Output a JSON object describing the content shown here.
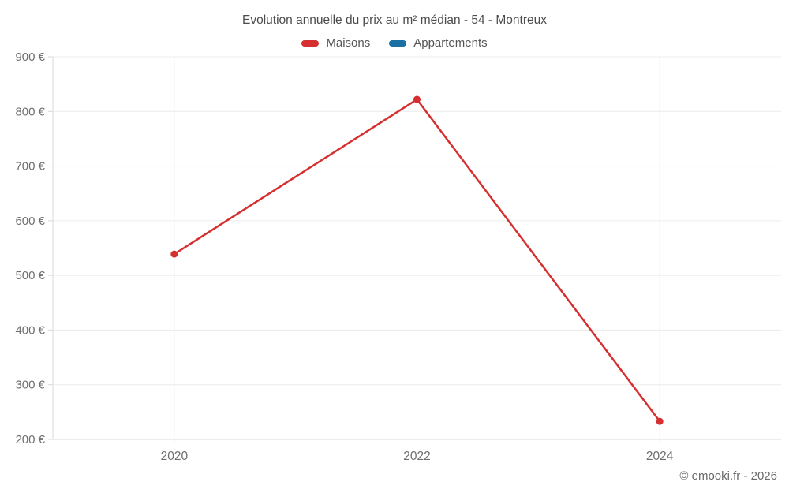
{
  "header": {
    "title": "Evolution annuelle du prix au m² médian - 54 - Montreux"
  },
  "legend": [
    {
      "label": "Maisons",
      "color": "#d62f2f"
    },
    {
      "label": "Appartements",
      "color": "#1a6fa3"
    }
  ],
  "footer": {
    "credit": "© emooki.fr - 2026"
  },
  "colors": {
    "grid": "#ececec",
    "axis": "#d9d9d9",
    "tick_text": "#6e6e6e",
    "title_text": "#4c4c4c",
    "maisons": "#d62f2f",
    "appartements": "#1a6fa3"
  },
  "chart_data": {
    "type": "line",
    "title": "Evolution annuelle du prix au m² médian - 54 - Montreux",
    "xlabel": "",
    "ylabel": "",
    "x": [
      2020,
      2022,
      2024
    ],
    "series": [
      {
        "name": "Maisons",
        "color": "#d62f2f",
        "values": [
          539,
          822,
          233
        ]
      },
      {
        "name": "Appartements",
        "color": "#1a6fa3",
        "values": []
      }
    ],
    "xlim": [
      2019,
      2025
    ],
    "ylim": [
      200,
      900
    ],
    "yticks": [
      200,
      300,
      400,
      500,
      600,
      700,
      800,
      900
    ],
    "ytick_labels": [
      "200 €",
      "300 €",
      "400 €",
      "500 €",
      "600 €",
      "700 €",
      "800 €",
      "900 €"
    ],
    "xticks": [
      2020,
      2022,
      2024
    ],
    "xtick_labels": [
      "2020",
      "2022",
      "2024"
    ],
    "grid": true,
    "legend_position": "top"
  }
}
